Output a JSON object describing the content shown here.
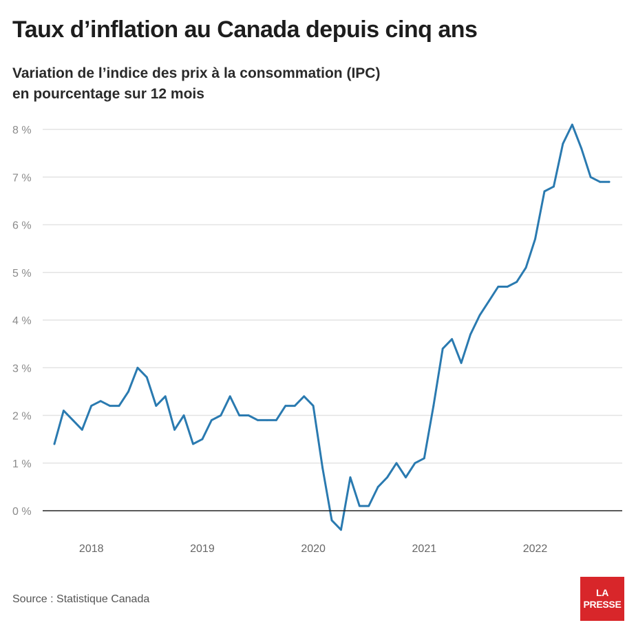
{
  "header": {
    "title": "Taux d’inflation au Canada depuis cinq ans",
    "subtitle_line1": "Variation de l’indice des prix à la consommation (IPC)",
    "subtitle_line2": "en pourcentage sur 12 mois"
  },
  "footer": {
    "source": "Source : Statistique Canada",
    "logo_line1": "LA",
    "logo_line2": "PRESSE"
  },
  "colors": {
    "line": "#2a7ab0",
    "grid": "#e3e3e3",
    "zero_line": "#222222",
    "tick_text": "#8a8a8a",
    "logo_bg": "#d8262a"
  },
  "chart_data": {
    "type": "line",
    "title": "Taux d’inflation au Canada depuis cinq ans",
    "subtitle": "Variation de l’indice des prix à la consommation (IPC) en pourcentage sur 12 mois",
    "xlabel": "",
    "ylabel": "",
    "ylim": [
      -0.5,
      8.3
    ],
    "grid": true,
    "y_ticks": [
      0,
      1,
      2,
      3,
      4,
      5,
      6,
      7,
      8
    ],
    "y_tick_labels": [
      "0 %",
      "1 %",
      "2 %",
      "3 %",
      "4 %",
      "5 %",
      "6 %",
      "7 %",
      "8 %"
    ],
    "x_ticks": [
      "2018-01",
      "2019-01",
      "2020-01",
      "2021-01",
      "2022-01"
    ],
    "x_tick_labels": [
      "2018",
      "2019",
      "2020",
      "2021",
      "2022"
    ],
    "series": [
      {
        "x": [
          "2017-09",
          "2017-10",
          "2017-11",
          "2017-12",
          "2018-01",
          "2018-02",
          "2018-03",
          "2018-04",
          "2018-05",
          "2018-06",
          "2018-07",
          "2018-08",
          "2018-09",
          "2018-10",
          "2018-11",
          "2018-12",
          "2019-01",
          "2019-02",
          "2019-03",
          "2019-04",
          "2019-05",
          "2019-06",
          "2019-07",
          "2019-08",
          "2019-09",
          "2019-10",
          "2019-11",
          "2019-12",
          "2020-01",
          "2020-02",
          "2020-03",
          "2020-04",
          "2020-05",
          "2020-06",
          "2020-07",
          "2020-08",
          "2020-09",
          "2020-10",
          "2020-11",
          "2020-12",
          "2021-01",
          "2021-02",
          "2021-03",
          "2021-04",
          "2021-05",
          "2021-06",
          "2021-07",
          "2021-08",
          "2021-09",
          "2021-10",
          "2021-11",
          "2021-12",
          "2022-01",
          "2022-02",
          "2022-03",
          "2022-04",
          "2022-05",
          "2022-06",
          "2022-07",
          "2022-08",
          "2022-09"
        ],
        "values": [
          1.4,
          2.1,
          1.9,
          1.7,
          2.2,
          2.3,
          2.2,
          2.2,
          2.5,
          3.0,
          2.8,
          2.2,
          2.4,
          1.7,
          2.0,
          1.4,
          1.5,
          1.9,
          2.0,
          2.4,
          2.0,
          2.0,
          1.9,
          1.9,
          1.9,
          2.2,
          2.2,
          2.4,
          2.2,
          0.9,
          -0.2,
          -0.4,
          0.7,
          0.1,
          0.1,
          0.5,
          0.7,
          1.0,
          0.7,
          1.0,
          1.1,
          2.2,
          3.4,
          3.6,
          3.1,
          3.7,
          4.1,
          4.4,
          4.7,
          4.7,
          4.8,
          5.1,
          5.7,
          6.7,
          6.8,
          7.7,
          8.1,
          7.6,
          7.0,
          6.9,
          6.9
        ]
      }
    ]
  }
}
